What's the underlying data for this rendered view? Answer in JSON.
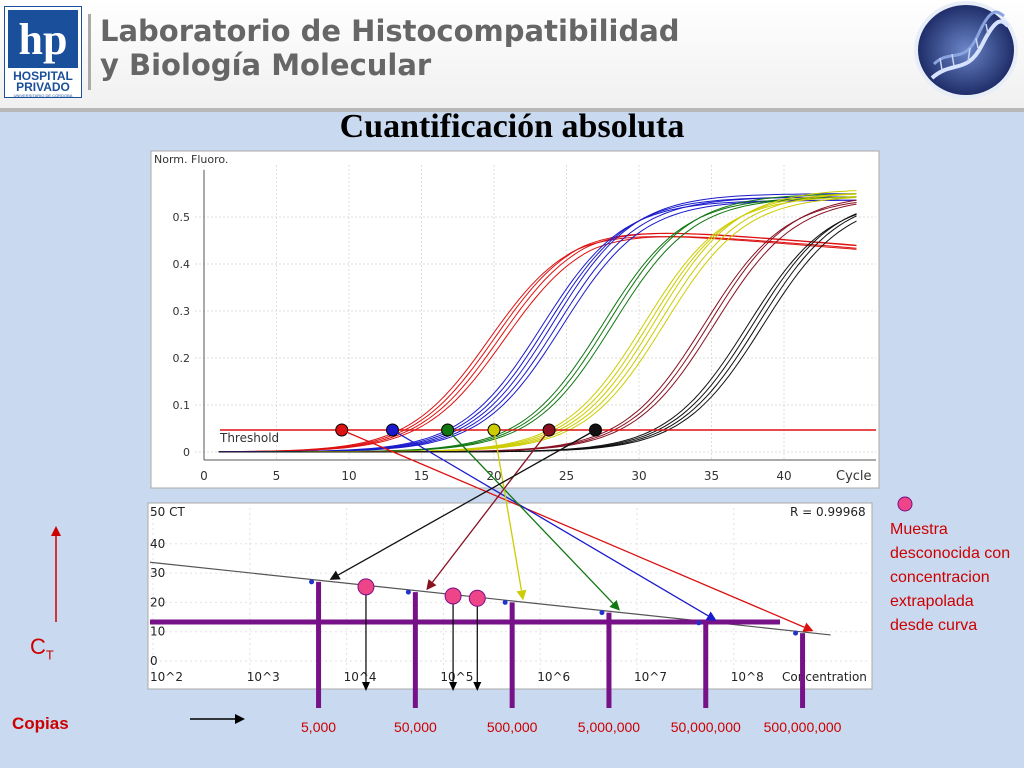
{
  "header": {
    "logo_top": "hp",
    "logo_line1": "HOSPITAL",
    "logo_line2": "PRIVADO",
    "logo_line3": "UNIVERSITARIO DE CÓRDOBA",
    "lab_line1": "Laboratorio de Histocompatibilidad",
    "lab_line2": "y Biología Molecular"
  },
  "slide_title": "Cuantificación absoluta",
  "note": "Muestra desconocida con concentracion extrapolada desde curva",
  "copias_label": "Copias",
  "ct_label": "C",
  "ct_sub": "T",
  "copies": [
    "5,000",
    "50,000",
    "500,000",
    "5,000,000",
    "50,000,000",
    "500,000,000"
  ],
  "colors": {
    "red": "#dd1111",
    "blue": "#1a1acc",
    "green": "#117711",
    "yellow": "#cccc00",
    "darkred": "#881122",
    "black": "#111111",
    "purple": "#771188",
    "pink": "#ee4488"
  },
  "chart_data": [
    {
      "type": "line",
      "ylabel": "Norm. Fluoro.",
      "xlabel": "Cycle",
      "x_ticks": [
        0,
        5,
        10,
        15,
        20,
        25,
        30,
        35,
        40
      ],
      "y_ticks": [
        0,
        0.1,
        0.2,
        0.3,
        0.4,
        0.5
      ],
      "xlim": [
        -1,
        45
      ],
      "ylim": [
        -0.02,
        0.58
      ],
      "threshold": {
        "label": "Threshold",
        "value": 0.01
      },
      "series": [
        {
          "color": "red",
          "ct": 9.5,
          "plateau": 0.49,
          "replicates": 4
        },
        {
          "color": "blue",
          "ct": 13,
          "plateau": 0.55,
          "replicates": 5
        },
        {
          "color": "green",
          "ct": 16.8,
          "plateau": 0.55,
          "replicates": 3
        },
        {
          "color": "yellow",
          "ct": 20,
          "plateau": 0.56,
          "replicates": 5
        },
        {
          "color": "darkred",
          "ct": 23.8,
          "plateau": 0.55,
          "replicates": 3
        },
        {
          "color": "black",
          "ct": 27,
          "plateau": 0.55,
          "replicates": 4
        }
      ]
    },
    {
      "type": "scatter",
      "ylabel": "50 CT",
      "xlabel": "Concentration",
      "r_value": "R = 0.99968",
      "y_ticks": [
        0,
        10,
        20,
        30,
        40
      ],
      "x_ticks": [
        "10^2",
        "10^3",
        "10^4",
        "10^5",
        "10^6",
        "10^7",
        "10^8"
      ],
      "ylim": [
        0,
        50
      ],
      "standards": [
        {
          "log_conc": 3.7,
          "ct": 27
        },
        {
          "log_conc": 4.7,
          "ct": 23.5
        },
        {
          "log_conc": 5.7,
          "ct": 20
        },
        {
          "log_conc": 6.7,
          "ct": 16.5
        },
        {
          "log_conc": 7.7,
          "ct": 13
        },
        {
          "log_conc": 8.7,
          "ct": 9.5
        }
      ],
      "unknowns": [
        {
          "log_conc": 4.2,
          "ct": 25.3
        },
        {
          "log_conc": 5.1,
          "ct": 22.2
        },
        {
          "log_conc": 5.35,
          "ct": 21.4
        }
      ],
      "fit_line": {
        "x0": 2,
        "y0": 33.6,
        "x1": 9,
        "y1": 8.9
      },
      "ct_level": 10
    }
  ]
}
